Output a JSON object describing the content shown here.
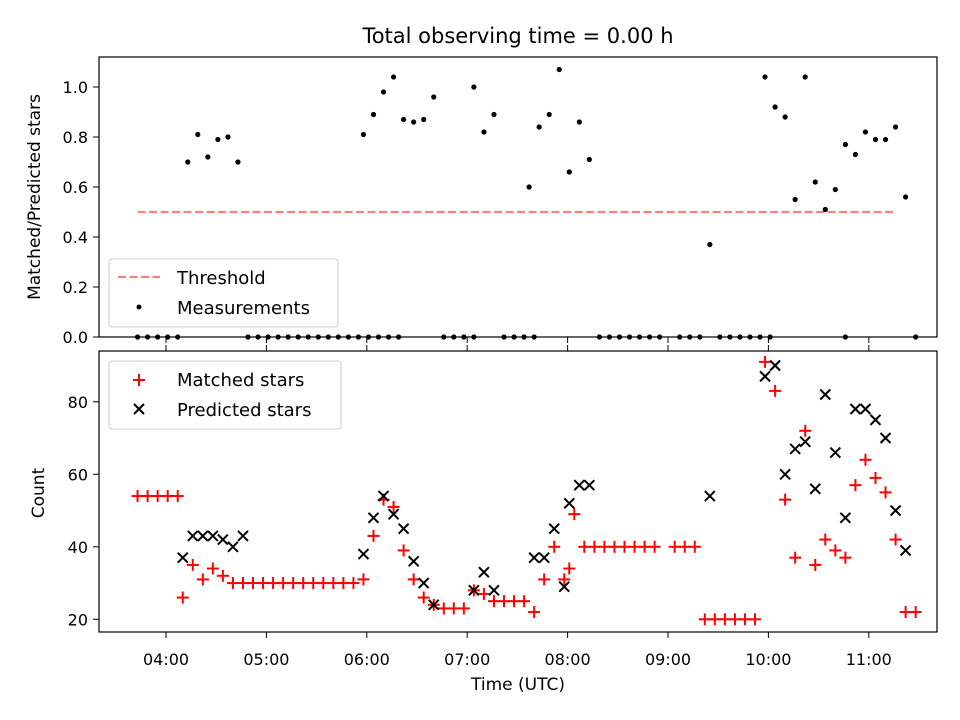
{
  "figure": {
    "title": "Total observing time = 0.00 h",
    "xlabel": "Time (UTC)"
  },
  "chart_data": [
    {
      "type": "scatter",
      "ylabel": "Matched/Predicted stars",
      "ylim": [
        0,
        1.12
      ],
      "yticks": [
        "0.0",
        "0.2",
        "0.4",
        "0.6",
        "0.8",
        "1.0"
      ],
      "legend": {
        "placement": "lower-left",
        "entries": [
          "Threshold",
          "Measurements"
        ]
      },
      "threshold": {
        "name": "Threshold",
        "value": 0.5,
        "x_range": [
          "03:43",
          "11:15"
        ],
        "color": "#ff7f7f",
        "style": "dashed"
      },
      "measurements": {
        "name": "Measurements",
        "color": "#000000",
        "points": [
          [
            "03:43",
            0
          ],
          [
            "03:49",
            0
          ],
          [
            "03:55",
            0
          ],
          [
            "04:01",
            0
          ],
          [
            "04:07",
            0
          ],
          [
            "04:13",
            0.7
          ],
          [
            "04:19",
            0.81
          ],
          [
            "04:25",
            0.72
          ],
          [
            "04:31",
            0.79
          ],
          [
            "04:37",
            0.8
          ],
          [
            "04:43",
            0.7
          ],
          [
            "04:49",
            0
          ],
          [
            "04:55",
            0
          ],
          [
            "05:01",
            0
          ],
          [
            "05:07",
            0
          ],
          [
            "05:13",
            0
          ],
          [
            "05:19",
            0
          ],
          [
            "05:25",
            0
          ],
          [
            "05:31",
            0
          ],
          [
            "05:37",
            0
          ],
          [
            "05:43",
            0
          ],
          [
            "05:49",
            0
          ],
          [
            "05:55",
            0
          ],
          [
            "06:01",
            0
          ],
          [
            "06:07",
            0
          ],
          [
            "06:13",
            0
          ],
          [
            "06:19",
            0
          ],
          [
            "05:58",
            0.81
          ],
          [
            "06:04",
            0.89
          ],
          [
            "06:10",
            0.98
          ],
          [
            "06:16",
            1.04
          ],
          [
            "06:22",
            0.87
          ],
          [
            "06:28",
            0.86
          ],
          [
            "06:34",
            0.87
          ],
          [
            "06:40",
            0.96
          ],
          [
            "06:46",
            0
          ],
          [
            "06:52",
            0
          ],
          [
            "06:58",
            0
          ],
          [
            "07:04",
            0
          ],
          [
            "07:04",
            1.0
          ],
          [
            "07:10",
            0.82
          ],
          [
            "07:16",
            0.89
          ],
          [
            "07:22",
            0
          ],
          [
            "07:28",
            0
          ],
          [
            "07:34",
            0
          ],
          [
            "07:40",
            0
          ],
          [
            "07:37",
            0.6
          ],
          [
            "07:43",
            0.84
          ],
          [
            "07:49",
            0.89
          ],
          [
            "07:55",
            1.07
          ],
          [
            "08:01",
            0.66
          ],
          [
            "08:07",
            0.86
          ],
          [
            "08:13",
            0.71
          ],
          [
            "08:19",
            0
          ],
          [
            "08:25",
            0
          ],
          [
            "08:31",
            0
          ],
          [
            "08:37",
            0
          ],
          [
            "08:43",
            0
          ],
          [
            "08:49",
            0
          ],
          [
            "08:55",
            0
          ],
          [
            "09:07",
            0
          ],
          [
            "09:13",
            0
          ],
          [
            "09:19",
            0
          ],
          [
            "09:25",
            0.37
          ],
          [
            "09:31",
            0
          ],
          [
            "09:37",
            0
          ],
          [
            "09:43",
            0
          ],
          [
            "09:49",
            0
          ],
          [
            "09:55",
            0
          ],
          [
            "10:01",
            0
          ],
          [
            "09:58",
            1.04
          ],
          [
            "10:04",
            0.92
          ],
          [
            "10:10",
            0.88
          ],
          [
            "10:16",
            0.55
          ],
          [
            "10:22",
            1.04
          ],
          [
            "10:28",
            0.62
          ],
          [
            "10:34",
            0.51
          ],
          [
            "10:40",
            0.59
          ],
          [
            "10:46",
            0
          ],
          [
            "10:46",
            0.77
          ],
          [
            "10:52",
            0.73
          ],
          [
            "10:58",
            0.82
          ],
          [
            "11:04",
            0.79
          ],
          [
            "11:10",
            0.79
          ],
          [
            "11:16",
            0.84
          ],
          [
            "11:22",
            0.56
          ],
          [
            "11:28",
            0
          ]
        ]
      }
    },
    {
      "type": "scatter",
      "ylabel": "Count",
      "ylim": [
        16.5,
        94
      ],
      "yticks": [
        "20",
        "40",
        "60",
        "80"
      ],
      "xticks": [
        "04:00",
        "05:00",
        "06:00",
        "07:00",
        "08:00",
        "09:00",
        "10:00",
        "11:00"
      ],
      "legend": {
        "placement": "upper-left",
        "entries": [
          "Matched stars",
          "Predicted stars"
        ]
      },
      "series": [
        {
          "name": "Matched stars",
          "marker": "plus",
          "color": "#ff0000",
          "points": [
            [
              "03:43",
              54
            ],
            [
              "03:49",
              54
            ],
            [
              "03:55",
              54
            ],
            [
              "04:01",
              54
            ],
            [
              "04:07",
              54
            ],
            [
              "04:10",
              26
            ],
            [
              "04:16",
              35
            ],
            [
              "04:22",
              31
            ],
            [
              "04:28",
              34
            ],
            [
              "04:34",
              32
            ],
            [
              "04:40",
              30
            ],
            [
              "04:46",
              30
            ],
            [
              "04:52",
              30
            ],
            [
              "04:58",
              30
            ],
            [
              "05:04",
              30
            ],
            [
              "05:10",
              30
            ],
            [
              "05:16",
              30
            ],
            [
              "05:22",
              30
            ],
            [
              "05:28",
              30
            ],
            [
              "05:34",
              30
            ],
            [
              "05:40",
              30
            ],
            [
              "05:46",
              30
            ],
            [
              "05:52",
              30
            ],
            [
              "05:58",
              31
            ],
            [
              "06:04",
              43
            ],
            [
              "06:10",
              53
            ],
            [
              "06:16",
              51
            ],
            [
              "06:22",
              39
            ],
            [
              "06:28",
              31
            ],
            [
              "06:34",
              26
            ],
            [
              "06:40",
              24
            ],
            [
              "06:46",
              23
            ],
            [
              "06:52",
              23
            ],
            [
              "06:58",
              23
            ],
            [
              "07:04",
              28
            ],
            [
              "07:10",
              27
            ],
            [
              "07:16",
              25
            ],
            [
              "07:22",
              25
            ],
            [
              "07:28",
              25
            ],
            [
              "07:34",
              25
            ],
            [
              "07:40",
              22
            ],
            [
              "07:46",
              31
            ],
            [
              "07:52",
              40
            ],
            [
              "07:58",
              31
            ],
            [
              "08:01",
              34
            ],
            [
              "08:04",
              49
            ],
            [
              "08:10",
              40
            ],
            [
              "08:16",
              40
            ],
            [
              "08:22",
              40
            ],
            [
              "08:28",
              40
            ],
            [
              "08:34",
              40
            ],
            [
              "08:40",
              40
            ],
            [
              "08:46",
              40
            ],
            [
              "08:52",
              40
            ],
            [
              "09:04",
              40
            ],
            [
              "09:10",
              40
            ],
            [
              "09:16",
              40
            ],
            [
              "09:22",
              20
            ],
            [
              "09:28",
              20
            ],
            [
              "09:34",
              20
            ],
            [
              "09:40",
              20
            ],
            [
              "09:46",
              20
            ],
            [
              "09:52",
              20
            ],
            [
              "09:58",
              91
            ],
            [
              "10:04",
              83
            ],
            [
              "10:10",
              53
            ],
            [
              "10:16",
              37
            ],
            [
              "10:22",
              72
            ],
            [
              "10:28",
              35
            ],
            [
              "10:34",
              42
            ],
            [
              "10:40",
              39
            ],
            [
              "10:46",
              37
            ],
            [
              "10:52",
              57
            ],
            [
              "10:58",
              64
            ],
            [
              "11:04",
              59
            ],
            [
              "11:10",
              55
            ],
            [
              "11:16",
              42
            ],
            [
              "11:22",
              22
            ],
            [
              "11:28",
              22
            ]
          ]
        },
        {
          "name": "Predicted stars",
          "marker": "x",
          "color": "#000000",
          "points": [
            [
              "04:10",
              37
            ],
            [
              "04:16",
              43
            ],
            [
              "04:22",
              43
            ],
            [
              "04:28",
              43
            ],
            [
              "04:34",
              42
            ],
            [
              "04:40",
              40
            ],
            [
              "04:46",
              43
            ],
            [
              "05:58",
              38
            ],
            [
              "06:04",
              48
            ],
            [
              "06:10",
              54
            ],
            [
              "06:16",
              49
            ],
            [
              "06:22",
              45
            ],
            [
              "06:28",
              36
            ],
            [
              "06:34",
              30
            ],
            [
              "06:40",
              24
            ],
            [
              "07:04",
              28
            ],
            [
              "07:10",
              33
            ],
            [
              "07:16",
              28
            ],
            [
              "07:40",
              37
            ],
            [
              "07:46",
              37
            ],
            [
              "07:52",
              45
            ],
            [
              "07:58",
              29
            ],
            [
              "08:01",
              52
            ],
            [
              "08:07",
              57
            ],
            [
              "08:13",
              57
            ],
            [
              "09:25",
              54
            ],
            [
              "09:58",
              87
            ],
            [
              "10:04",
              90
            ],
            [
              "10:10",
              60
            ],
            [
              "10:16",
              67
            ],
            [
              "10:22",
              69
            ],
            [
              "10:28",
              56
            ],
            [
              "10:34",
              82
            ],
            [
              "10:40",
              66
            ],
            [
              "10:46",
              48
            ],
            [
              "10:52",
              78
            ],
            [
              "10:58",
              78
            ],
            [
              "11:04",
              75
            ],
            [
              "11:10",
              70
            ],
            [
              "11:16",
              50
            ],
            [
              "11:22",
              39
            ]
          ]
        }
      ]
    }
  ]
}
